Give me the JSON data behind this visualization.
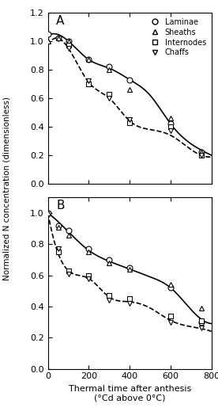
{
  "title_A": "A",
  "title_B": "B",
  "xlabel": "Thermal time after anthesis",
  "xlabel2": "(°Cd above 0°C)",
  "ylabel": "Normalized N concentration (dimensionless)",
  "xlim": [
    0,
    800
  ],
  "ylim_A": [
    0.0,
    1.2
  ],
  "ylim_B": [
    0.0,
    1.1
  ],
  "xticks": [
    0,
    200,
    400,
    600,
    800
  ],
  "yticks_A": [
    0.0,
    0.2,
    0.4,
    0.6,
    0.8,
    1.0,
    1.2
  ],
  "yticks_B": [
    0.0,
    0.2,
    0.4,
    0.6,
    0.8,
    1.0
  ],
  "legend_labels": [
    "Laminae",
    "Sheaths",
    "Internodes",
    "Chaffs"
  ],
  "legend_markers": [
    "o",
    "^",
    "s",
    "v"
  ],
  "A_laminae_x": [
    0,
    50,
    100,
    200,
    300,
    400,
    600,
    750
  ],
  "A_laminae_y": [
    1.05,
    1.02,
    1.0,
    0.87,
    0.82,
    0.73,
    0.42,
    0.22
  ],
  "A_sheaths_x": [
    0,
    50,
    100,
    200,
    300,
    400,
    600,
    750
  ],
  "A_sheaths_y": [
    1.0,
    1.02,
    1.0,
    0.87,
    0.8,
    0.66,
    0.46,
    0.22
  ],
  "A_internodes_x": [
    100,
    200,
    300,
    400,
    600,
    750
  ],
  "A_internodes_y": [
    0.97,
    0.7,
    0.63,
    0.43,
    0.4,
    0.2
  ],
  "A_chaffs_x": [
    100,
    200,
    300,
    400,
    600,
    750
  ],
  "A_chaffs_y": [
    0.95,
    0.72,
    0.6,
    0.45,
    0.37,
    0.2
  ],
  "A_curve1_x": [
    0,
    100,
    200,
    300,
    400,
    500,
    600,
    700,
    800
  ],
  "A_curve1_y": [
    1.04,
    1.0,
    0.87,
    0.81,
    0.73,
    0.62,
    0.42,
    0.28,
    0.2
  ],
  "A_curve2_x": [
    0,
    100,
    200,
    300,
    400,
    500,
    600,
    700,
    800
  ],
  "A_curve2_y": [
    0.97,
    0.95,
    0.71,
    0.6,
    0.44,
    0.38,
    0.34,
    0.24,
    0.19
  ],
  "B_laminae_x": [
    0,
    50,
    100,
    200,
    300,
    400,
    600,
    750
  ],
  "B_laminae_y": [
    1.0,
    0.92,
    0.89,
    0.77,
    0.7,
    0.65,
    0.52,
    0.3
  ],
  "B_sheaths_x": [
    0,
    50,
    100,
    200,
    300,
    400,
    600,
    750
  ],
  "B_sheaths_y": [
    1.0,
    0.91,
    0.86,
    0.75,
    0.68,
    0.64,
    0.54,
    0.39
  ],
  "B_internodes_x": [
    50,
    100,
    200,
    300,
    400,
    600,
    750
  ],
  "B_internodes_y": [
    0.75,
    0.63,
    0.6,
    0.47,
    0.45,
    0.34,
    0.31
  ],
  "B_chaffs_x": [
    50,
    100,
    200,
    300,
    400,
    600,
    750
  ],
  "B_chaffs_y": [
    0.77,
    0.61,
    0.58,
    0.44,
    0.42,
    0.3,
    0.26
  ],
  "B_curve1_x": [
    0,
    100,
    200,
    300,
    400,
    500,
    600,
    700,
    800
  ],
  "B_curve1_y": [
    1.0,
    0.88,
    0.76,
    0.69,
    0.64,
    0.59,
    0.52,
    0.38,
    0.29
  ],
  "B_curve2_x": [
    0,
    100,
    200,
    300,
    400,
    500,
    600,
    700,
    800
  ],
  "B_curve2_y": [
    1.0,
    0.63,
    0.58,
    0.46,
    0.43,
    0.39,
    0.31,
    0.27,
    0.24
  ],
  "marker_size": 5,
  "marker_color": "black",
  "marker_facecolor": "white",
  "line_color": "black",
  "line_width": 1.2,
  "curve1_linestyle": "-",
  "curve2_linestyle": "--"
}
